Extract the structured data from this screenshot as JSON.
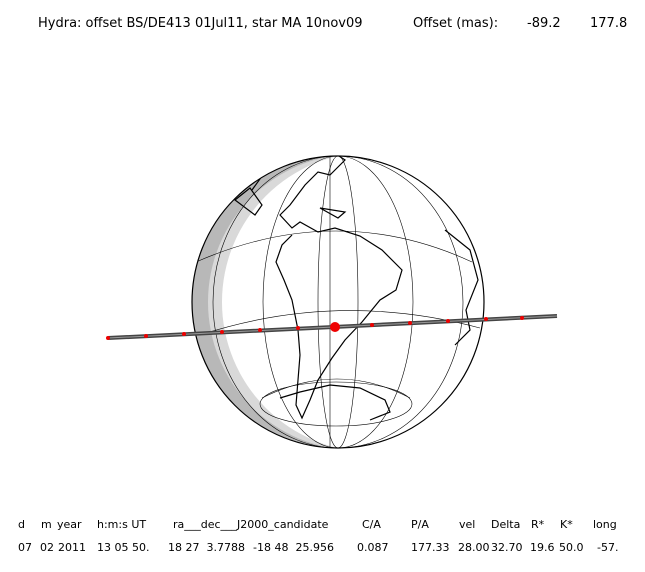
{
  "header": {
    "title": "Hydra: offset BS/DE413 01Jul11, star MA 10nov09",
    "offset_label": "Offset (mas):",
    "offset_x": "-89.2",
    "offset_y": "177.8"
  },
  "table": {
    "headers": [
      "d",
      "m",
      "year",
      "h:m:s UT",
      "ra___dec___J2000_candidate",
      "C/A",
      "P/A",
      "vel",
      "Delta",
      "R*",
      "K*",
      "long"
    ],
    "rows": [
      [
        "07",
        "02",
        "2011",
        "13 05 50.",
        "18 27  3.7788",
        "-18 48  25.956",
        "0.087",
        "177.33",
        "28.00",
        "32.70",
        "19.6",
        "50.0",
        "-57."
      ]
    ]
  }
}
